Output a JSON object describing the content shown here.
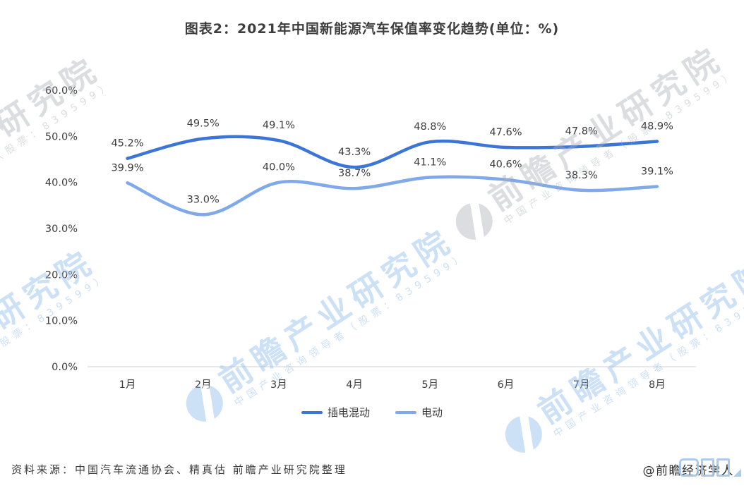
{
  "chart_data": {
    "type": "line",
    "smooth": true,
    "title": "图表2：2021年中国新能源汽车保值率变化趋势(单位：%)",
    "categories": [
      "1月",
      "2月",
      "3月",
      "4月",
      "5月",
      "6月",
      "7月",
      "8月"
    ],
    "series": [
      {
        "name": "插电混动",
        "color": "#3B76D6",
        "values": [
          45.2,
          49.5,
          49.1,
          43.3,
          48.8,
          47.6,
          47.8,
          48.9
        ]
      },
      {
        "name": "电动",
        "color": "#7FA9E8",
        "values": [
          39.9,
          33.0,
          40.0,
          38.7,
          41.1,
          40.6,
          38.3,
          39.1
        ]
      }
    ],
    "xlabel": "",
    "ylabel": "",
    "ylim": [
      0,
      60
    ],
    "ytick_step": 10,
    "ytick_suffix": "%",
    "grid": false,
    "data_labels": true,
    "legend_position": "bottom",
    "axis_color": "#d9d9d9",
    "label_color": "#3d3d3d"
  },
  "watermark": {
    "big_text": "前瞻产业研究院",
    "small_text": "中国产业咨询领导者（股票：839599）"
  },
  "footer": {
    "source": "资料来源：中国汽车流通协会、精真估 前瞻产业研究院整理",
    "attribution": "@前瞻经济学人"
  }
}
